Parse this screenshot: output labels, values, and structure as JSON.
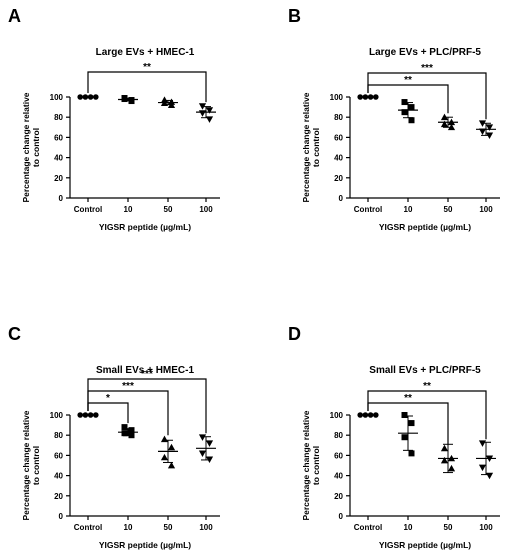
{
  "panels": [
    {
      "letter": "A",
      "title": "Large EVs + HMEC-1",
      "ylabel": [
        "Percentage change relative",
        "to control"
      ],
      "xlabel": "YIGSR peptide (µg/mL)"
    },
    {
      "letter": "B",
      "title": "Large EVs + PLC/PRF-5",
      "ylabel": [
        "Percentage change relative",
        "to control"
      ],
      "xlabel": "YIGSR peptide (µg/mL)"
    },
    {
      "letter": "C",
      "title": "Small EVs + HMEC-1",
      "ylabel": [
        "Percentage change relative",
        "to control"
      ],
      "xlabel": "YIGSR peptide (µg/mL)"
    },
    {
      "letter": "D",
      "title": "Small EVs + PLC/PRF-5",
      "ylabel": [
        "Percentage change relative",
        "to control"
      ],
      "xlabel": "YIGSR peptide (µg/mL)"
    }
  ],
  "chart_data": [
    {
      "type": "scatter",
      "panel": "A",
      "title": "Large EVs + HMEC-1",
      "xlabel": "YIGSR peptide (µg/mL)",
      "ylabel": "Percentage change relative to control",
      "categories": [
        "Control",
        "10",
        "50",
        "100"
      ],
      "ylim": [
        0,
        100
      ],
      "yticks": [
        0,
        20,
        40,
        60,
        80,
        100
      ],
      "markers": [
        "circle",
        "square",
        "triangle-up",
        "triangle-down"
      ],
      "points": [
        [
          100,
          100,
          100,
          100
        ],
        [
          99,
          97,
          98,
          96
        ],
        [
          97,
          95,
          94,
          92
        ],
        [
          91,
          87,
          84,
          78
        ]
      ],
      "mean": [
        100,
        97.5,
        94.5,
        85
      ],
      "sd": [
        0,
        1.3,
        2.1,
        5.5
      ],
      "significance": [
        {
          "from": "Control",
          "to": "100",
          "label": "**"
        }
      ]
    },
    {
      "type": "scatter",
      "panel": "B",
      "title": "Large EVs + PLC/PRF-5",
      "xlabel": "YIGSR peptide (µg/mL)",
      "ylabel": "Percentage change relative to control",
      "categories": [
        "Control",
        "10",
        "50",
        "100"
      ],
      "ylim": [
        0,
        100
      ],
      "yticks": [
        0,
        20,
        40,
        60,
        80,
        100
      ],
      "markers": [
        "circle",
        "square",
        "triangle-up",
        "triangle-down"
      ],
      "points": [
        [
          100,
          100,
          100,
          100
        ],
        [
          95,
          90,
          85,
          77
        ],
        [
          80,
          75,
          73,
          70
        ],
        [
          74,
          70,
          66,
          62
        ]
      ],
      "mean": [
        100,
        87,
        75,
        68
      ],
      "sd": [
        0,
        7.5,
        5,
        6
      ],
      "significance": [
        {
          "from": "Control",
          "to": "50",
          "label": "**"
        },
        {
          "from": "Control",
          "to": "100",
          "label": "***"
        }
      ]
    },
    {
      "type": "scatter",
      "panel": "C",
      "title": "Small EVs + HMEC-1",
      "xlabel": "YIGSR peptide (µg/mL)",
      "ylabel": "Percentage change relative to control",
      "categories": [
        "Control",
        "10",
        "50",
        "100"
      ],
      "ylim": [
        0,
        100
      ],
      "yticks": [
        0,
        20,
        40,
        60,
        80,
        100
      ],
      "markers": [
        "circle",
        "square",
        "triangle-up",
        "triangle-down"
      ],
      "points": [
        [
          100,
          100,
          100,
          100
        ],
        [
          88,
          85,
          82,
          80
        ],
        [
          76,
          68,
          58,
          50
        ],
        [
          78,
          72,
          62,
          56
        ]
      ],
      "mean": [
        100,
        83,
        64,
        67
      ],
      "sd": [
        0,
        3.5,
        11,
        11.5
      ],
      "significance": [
        {
          "from": "Control",
          "to": "10",
          "label": "*"
        },
        {
          "from": "Control",
          "to": "50",
          "label": "***"
        },
        {
          "from": "Control",
          "to": "100",
          "label": "***"
        }
      ]
    },
    {
      "type": "scatter",
      "panel": "D",
      "title": "Small EVs + PLC/PRF-5",
      "xlabel": "YIGSR peptide (µg/mL)",
      "ylabel": "Percentage change relative to control",
      "categories": [
        "Control",
        "10",
        "50",
        "100"
      ],
      "ylim": [
        0,
        100
      ],
      "yticks": [
        0,
        20,
        40,
        60,
        80,
        100
      ],
      "markers": [
        "circle",
        "square",
        "triangle-up",
        "triangle-down"
      ],
      "points": [
        [
          100,
          100,
          100,
          100
        ],
        [
          100,
          92,
          78,
          62
        ],
        [
          67,
          57,
          55,
          47
        ],
        [
          72,
          57,
          48,
          40
        ]
      ],
      "mean": [
        100,
        82,
        57,
        57
      ],
      "sd": [
        0,
        17,
        14,
        16
      ],
      "significance": [
        {
          "from": "Control",
          "to": "50",
          "label": "**"
        },
        {
          "from": "Control",
          "to": "100",
          "label": "**"
        }
      ]
    }
  ]
}
